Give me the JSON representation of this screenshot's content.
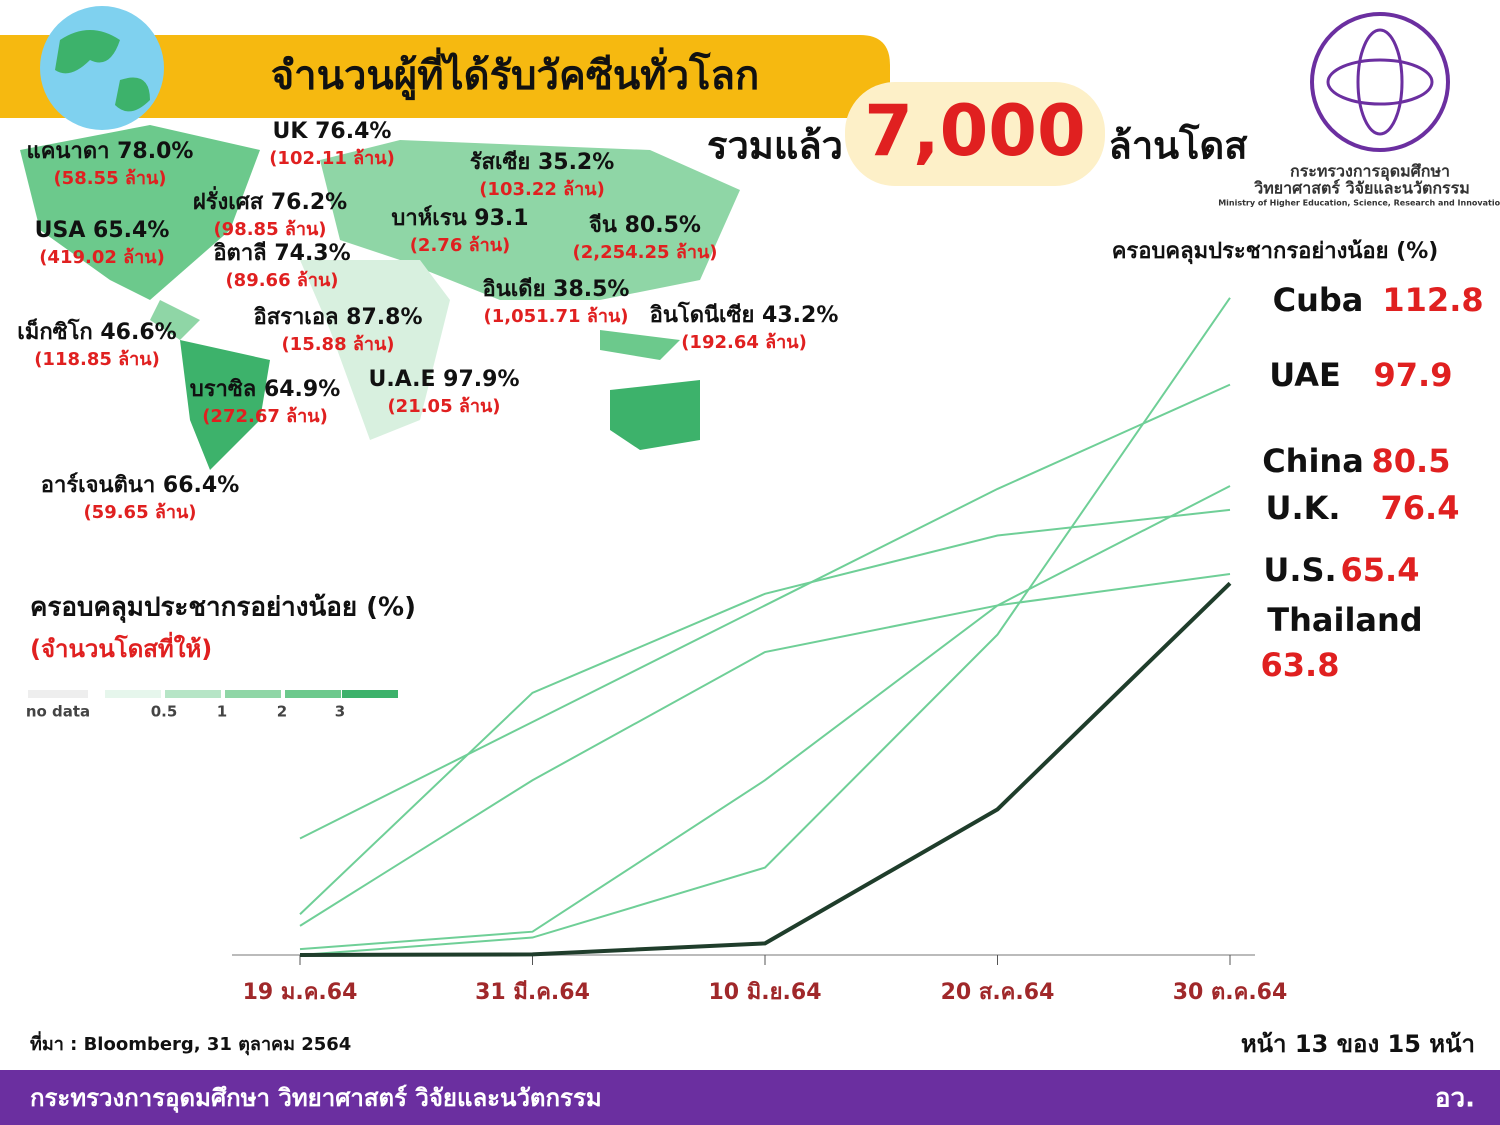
{
  "header": {
    "title": "จำนวนผู้ที่ได้รับวัคซีนทั่วโลก",
    "total_prefix": "รวมแล้ว",
    "total": "7,000",
    "total_suffix": "ล้านโดส"
  },
  "logo": {
    "name_th": "กระทรวงการอุดมศึกษา",
    "name_th2": "วิทยาศาสตร์ วิจัยและนวัตกรรม",
    "name_en": "Ministry of Higher Education, Science, Research and Innovation"
  },
  "map": {
    "labels": [
      {
        "name": "แคนาดา 78.0%",
        "doses": "(58.55 ล้าน)"
      },
      {
        "name": "UK 76.4%",
        "doses": "(102.11 ล้าน)"
      },
      {
        "name": "รัสเซีย 35.2%",
        "doses": "(103.22 ล้าน)"
      },
      {
        "name": "ฝรั่งเศส 76.2%",
        "doses": "(98.85 ล้าน)"
      },
      {
        "name": "บาห์เรน 93.1",
        "doses": "(2.76 ล้าน)"
      },
      {
        "name": "จีน 80.5%",
        "doses": "(2,254.25 ล้าน)"
      },
      {
        "name": "USA 65.4%",
        "doses": "(419.02 ล้าน)"
      },
      {
        "name": "อิตาลี 74.3%",
        "doses": "(89.66 ล้าน)"
      },
      {
        "name": "อินเดีย 38.5%",
        "doses": "(1,051.71 ล้าน)"
      },
      {
        "name": "อิสราเอล 87.8%",
        "doses": "(15.88 ล้าน)"
      },
      {
        "name": "อินโดนีเซีย 43.2%",
        "doses": "(192.64 ล้าน)"
      },
      {
        "name": "เม็กซิโก 46.6%",
        "doses": "(118.85 ล้าน)"
      },
      {
        "name": "U.A.E 97.9%",
        "doses": "(21.05 ล้าน)"
      },
      {
        "name": "บราซิล 64.9%",
        "doses": "(272.67 ล้าน)"
      },
      {
        "name": "อาร์เจนตินา 66.4%",
        "doses": "(59.65 ล้าน)"
      }
    ],
    "legend_title": "ครอบคลุมประชากรอย่างน้อย (%)",
    "legend_subtitle": "(จำนวนโดสที่ให้)",
    "legend": [
      "no data",
      "0.5",
      "1",
      "2",
      "3"
    ]
  },
  "chart_data": {
    "type": "line",
    "title": "ครอบคลุมประชากรอย่างน้อย (%)",
    "categories": [
      "19 ม.ค.64",
      "31 มี.ค.64",
      "10 มิ.ย.64",
      "20 ส.ค.64",
      "30 ต.ค.64"
    ],
    "ylim": [
      0,
      115
    ],
    "series": [
      {
        "name": "Cuba",
        "color": "#6fcf97",
        "values": [
          0,
          3,
          15,
          55,
          112.8
        ]
      },
      {
        "name": "UAE",
        "color": "#6fcf97",
        "values": [
          20,
          40,
          60,
          80,
          97.9
        ]
      },
      {
        "name": "China",
        "color": "#6fcf97",
        "values": [
          1,
          4,
          30,
          60,
          80.5
        ]
      },
      {
        "name": "U.K.",
        "color": "#6fcf97",
        "values": [
          7,
          45,
          62,
          72,
          76.4
        ]
      },
      {
        "name": "U.S.",
        "color": "#6fcf97",
        "values": [
          5,
          30,
          52,
          60,
          65.4
        ]
      },
      {
        "name": "Thailand",
        "color": "#1f3d2b",
        "values": [
          0,
          0.1,
          2,
          25,
          63.8
        ]
      }
    ]
  },
  "source": "ที่มา : Bloomberg, 31 ตุลาคม 2564",
  "page": "หน้า 13 ของ 15 หน้า",
  "footer": {
    "org": "กระทรวงการอุดมศึกษา วิทยาศาสตร์ วิจัยและนวัตกรรม",
    "abbr": "อว."
  }
}
